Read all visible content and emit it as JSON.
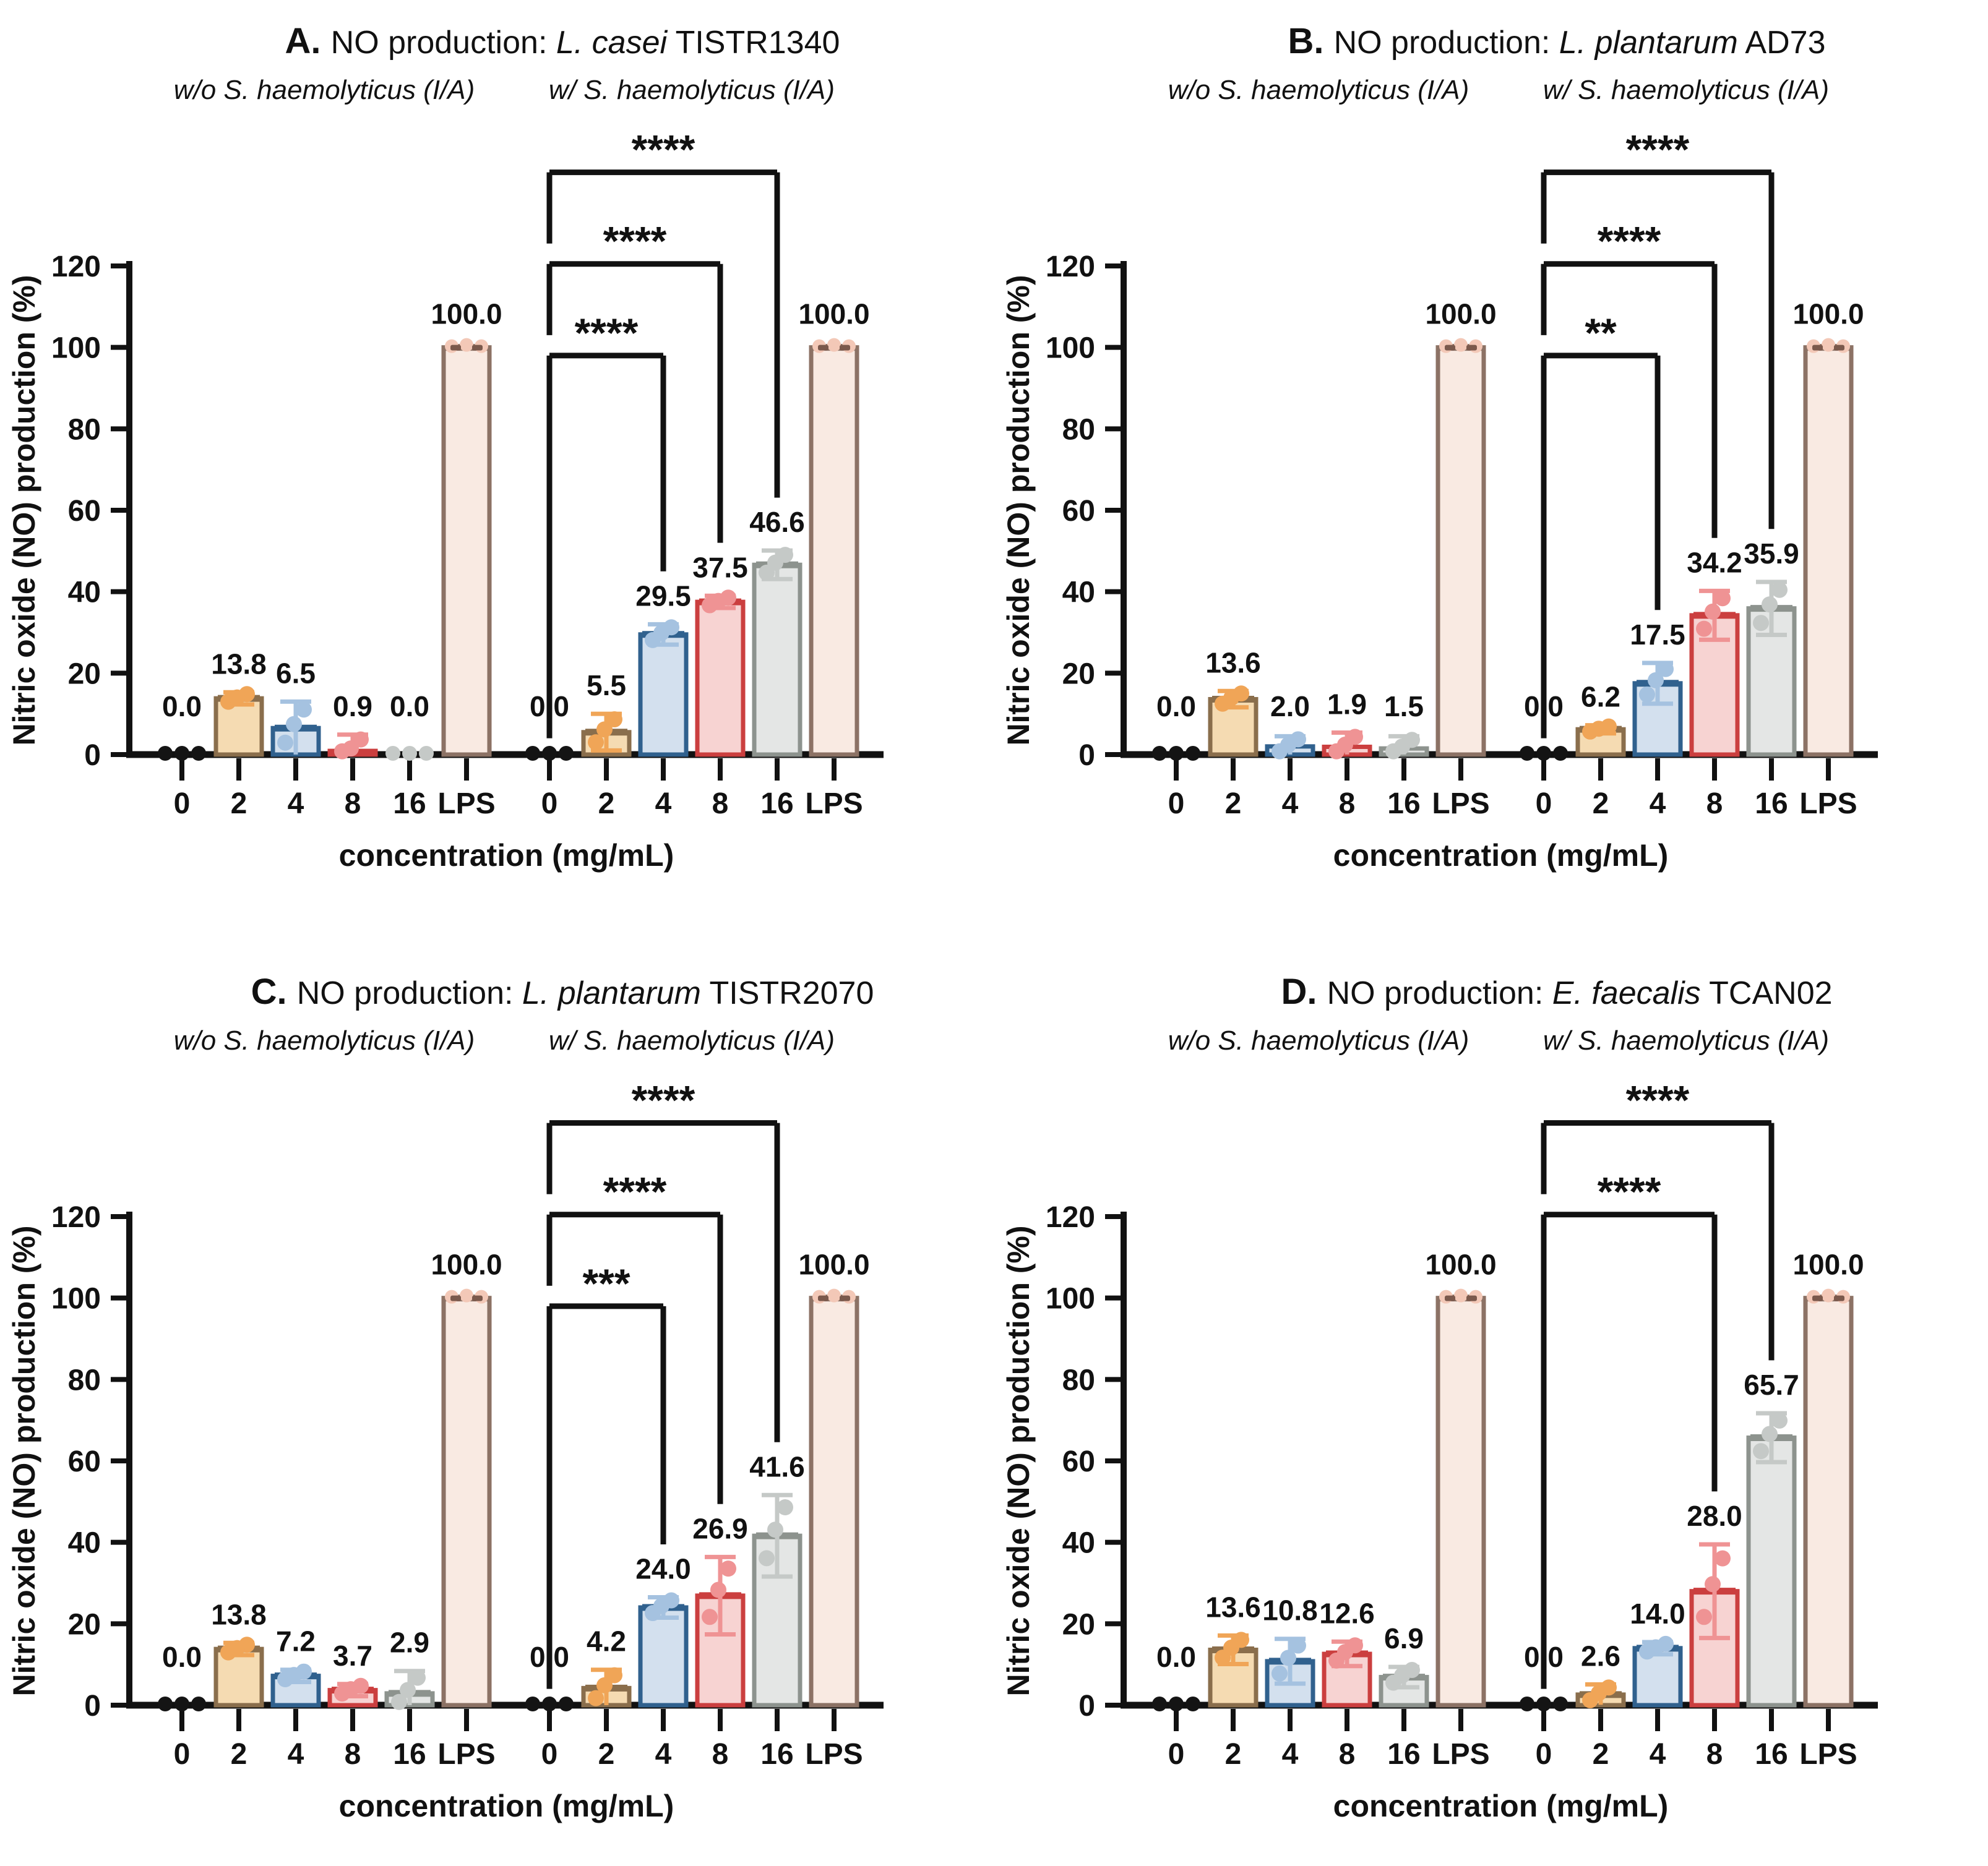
{
  "figure": {
    "y_axis_label": "Nitric oxide (NO) production (%)",
    "x_axis_label": "concentration (mg/mL)",
    "y_ticks": [
      0,
      20,
      40,
      60,
      80,
      100,
      120
    ],
    "ylim": [
      0,
      120
    ],
    "x_categories": [
      "0",
      "2",
      "4",
      "8",
      "16",
      "LPS"
    ],
    "group_without": {
      "prefix": "w/o ",
      "species": "S. haemolyticus",
      "suffix": " (I/A)"
    },
    "group_with": {
      "prefix": "w/ ",
      "species": "S. haemolyticus",
      "suffix": " (I/A)"
    }
  },
  "colors": {
    "0": {
      "fill": "none",
      "stroke": "#141414",
      "point": "#141414"
    },
    "2": {
      "fill": "#F5DBB2",
      "stroke": "#8A6E4C",
      "point": "#F0A557"
    },
    "4": {
      "fill": "#D3E0EE",
      "stroke": "#30618E",
      "point": "#A5C2E0"
    },
    "8": {
      "fill": "#F7D3D2",
      "stroke": "#CB3F3F",
      "point": "#EF9394"
    },
    "16": {
      "fill": "#E4E6E5",
      "stroke": "#8D938E",
      "point": "#C5C9C7"
    },
    "LPS": {
      "fill": "#F9EAE2",
      "stroke": "#8C7265",
      "point": "#F3C8B7",
      "dash": "#7B594C"
    },
    "axis": "#111111",
    "text": "#111111"
  },
  "chart_data": [
    {
      "id": "A",
      "type": "bar",
      "title": {
        "letter": "A.",
        "text": "NO production:",
        "species": "L. casei",
        "strain": "TISTR1340"
      },
      "series": [
        {
          "name": "without",
          "bars": [
            {
              "cat": "0",
              "value": 0,
              "err": 0,
              "label": "0.0"
            },
            {
              "cat": "2",
              "value": 13.8,
              "err": 1.5,
              "label": "13.8"
            },
            {
              "cat": "4",
              "value": 6.5,
              "err": 6.5,
              "label": "6.5"
            },
            {
              "cat": "8",
              "value": 0.9,
              "err": 4,
              "label": "0.9"
            },
            {
              "cat": "16",
              "value": 0,
              "err": 0,
              "label": "0.0"
            },
            {
              "cat": "LPS",
              "value": 100,
              "err": 0,
              "label": "100.0"
            }
          ]
        },
        {
          "name": "with",
          "bars": [
            {
              "cat": "0",
              "value": 0,
              "err": 0,
              "label": "0.0"
            },
            {
              "cat": "2",
              "value": 5.5,
              "err": 4.5,
              "label": "5.5"
            },
            {
              "cat": "4",
              "value": 29.5,
              "err": 2.5,
              "label": "29.5"
            },
            {
              "cat": "8",
              "value": 37.5,
              "err": 1.5,
              "label": "37.5"
            },
            {
              "cat": "16",
              "value": 46.6,
              "err": 3.5,
              "label": "46.6"
            },
            {
              "cat": "LPS",
              "value": 100,
              "err": 0,
              "label": "100.0"
            }
          ]
        }
      ],
      "significance": [
        {
          "from": "0",
          "to": "4",
          "stars": "****"
        },
        {
          "from": "0",
          "to": "8",
          "stars": "****"
        },
        {
          "from": "0",
          "to": "16",
          "stars": "****"
        }
      ]
    },
    {
      "id": "B",
      "type": "bar",
      "title": {
        "letter": "B.",
        "text": "NO production:",
        "species": "L. plantarum",
        "strain": "AD73"
      },
      "series": [
        {
          "name": "without",
          "bars": [
            {
              "cat": "0",
              "value": 0,
              "err": 0,
              "label": "0.0"
            },
            {
              "cat": "2",
              "value": 13.6,
              "err": 2,
              "label": "13.6"
            },
            {
              "cat": "4",
              "value": 2.0,
              "err": 2.5,
              "label": "2.0"
            },
            {
              "cat": "8",
              "value": 1.9,
              "err": 3.5,
              "label": "1.9"
            },
            {
              "cat": "16",
              "value": 1.5,
              "err": 3,
              "label": "1.5"
            },
            {
              "cat": "LPS",
              "value": 100,
              "err": 0,
              "label": "100.0"
            }
          ]
        },
        {
          "name": "with",
          "bars": [
            {
              "cat": "0",
              "value": 0,
              "err": 0,
              "label": "0.0"
            },
            {
              "cat": "2",
              "value": 6.2,
              "err": 1,
              "label": "6.2"
            },
            {
              "cat": "4",
              "value": 17.5,
              "err": 5,
              "label": "17.5"
            },
            {
              "cat": "8",
              "value": 34.2,
              "err": 6,
              "label": "34.2"
            },
            {
              "cat": "16",
              "value": 35.9,
              "err": 6.5,
              "label": "35.9"
            },
            {
              "cat": "LPS",
              "value": 100,
              "err": 0,
              "label": "100.0"
            }
          ]
        }
      ],
      "significance": [
        {
          "from": "0",
          "to": "4",
          "stars": "**"
        },
        {
          "from": "0",
          "to": "8",
          "stars": "****"
        },
        {
          "from": "0",
          "to": "16",
          "stars": "****"
        }
      ]
    },
    {
      "id": "C",
      "type": "bar",
      "title": {
        "letter": "C.",
        "text": "NO production:",
        "species": "L. plantarum",
        "strain": "TISTR2070"
      },
      "series": [
        {
          "name": "without",
          "bars": [
            {
              "cat": "0",
              "value": 0,
              "err": 0,
              "label": "0.0"
            },
            {
              "cat": "2",
              "value": 13.8,
              "err": 1.5,
              "label": "13.8"
            },
            {
              "cat": "4",
              "value": 7.2,
              "err": 1.5,
              "label": "7.2"
            },
            {
              "cat": "8",
              "value": 3.7,
              "err": 1.5,
              "label": "3.7"
            },
            {
              "cat": "16",
              "value": 2.9,
              "err": 5.5,
              "label": "2.9"
            },
            {
              "cat": "LPS",
              "value": 100,
              "err": 0,
              "label": "100.0"
            }
          ]
        },
        {
          "name": "with",
          "bars": [
            {
              "cat": "0",
              "value": 0,
              "err": 0,
              "label": "0.0"
            },
            {
              "cat": "2",
              "value": 4.2,
              "err": 4.5,
              "label": "4.2"
            },
            {
              "cat": "4",
              "value": 24.0,
              "err": 2.5,
              "label": "24.0"
            },
            {
              "cat": "8",
              "value": 26.9,
              "err": 9.5,
              "label": "26.9"
            },
            {
              "cat": "16",
              "value": 41.6,
              "err": 10,
              "label": "41.6"
            },
            {
              "cat": "LPS",
              "value": 100,
              "err": 0,
              "label": "100.0"
            }
          ]
        }
      ],
      "significance": [
        {
          "from": "0",
          "to": "4",
          "stars": "***"
        },
        {
          "from": "0",
          "to": "8",
          "stars": "****"
        },
        {
          "from": "0",
          "to": "16",
          "stars": "****"
        }
      ]
    },
    {
      "id": "D",
      "type": "bar",
      "title": {
        "letter": "D.",
        "text": "NO production:",
        "species": "E. faecalis",
        "strain": "TCAN02"
      },
      "series": [
        {
          "name": "without",
          "bars": [
            {
              "cat": "0",
              "value": 0,
              "err": 0,
              "label": "0.0"
            },
            {
              "cat": "2",
              "value": 13.6,
              "err": 3.5,
              "label": "13.6"
            },
            {
              "cat": "4",
              "value": 10.8,
              "err": 5.5,
              "label": "10.8"
            },
            {
              "cat": "8",
              "value": 12.6,
              "err": 3,
              "label": "12.6"
            },
            {
              "cat": "16",
              "value": 6.9,
              "err": 2.5,
              "label": "6.9"
            },
            {
              "cat": "LPS",
              "value": 100,
              "err": 0,
              "label": "100.0"
            }
          ]
        },
        {
          "name": "with",
          "bars": [
            {
              "cat": "0",
              "value": 0,
              "err": 0,
              "label": "0.0"
            },
            {
              "cat": "2",
              "value": 2.6,
              "err": 2.5,
              "label": "2.6"
            },
            {
              "cat": "4",
              "value": 14.0,
              "err": 1.5,
              "label": "14.0"
            },
            {
              "cat": "8",
              "value": 28.0,
              "err": 11.5,
              "label": "28.0"
            },
            {
              "cat": "16",
              "value": 65.7,
              "err": 6,
              "label": "65.7"
            },
            {
              "cat": "LPS",
              "value": 100,
              "err": 0,
              "label": "100.0"
            }
          ]
        }
      ],
      "significance": [
        {
          "from": "0",
          "to": "8",
          "stars": "****"
        },
        {
          "from": "0",
          "to": "16",
          "stars": "****"
        }
      ]
    }
  ]
}
